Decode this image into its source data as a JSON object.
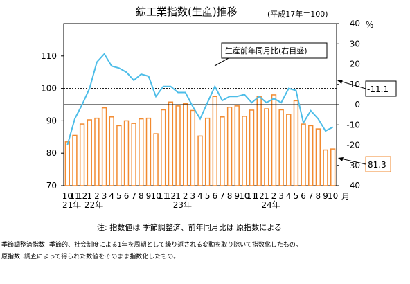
{
  "chart_data": {
    "type": "bar+line",
    "title": "鉱工業指数(生産)推移",
    "base_note": "(平成17年＝100)",
    "left_axis": {
      "ylim": [
        70,
        120
      ],
      "ticks": [
        70,
        80,
        90,
        100,
        110
      ]
    },
    "right_axis": {
      "unit": "%",
      "ylim": [
        -40,
        40
      ],
      "ticks": [
        40,
        30,
        20,
        10,
        0,
        -10,
        -20,
        -30,
        -40
      ]
    },
    "x_unit": "月",
    "month_labels": [
      "10",
      "11",
      "12",
      "1",
      "2",
      "3",
      "4",
      "5",
      "6",
      "7",
      "8",
      "9",
      "10",
      "11",
      "12",
      "1",
      "2",
      "3",
      "4",
      "5",
      "6",
      "7",
      "8",
      "9",
      "10",
      "11",
      "12",
      "1",
      "2",
      "3",
      "4",
      "5",
      "6",
      "7",
      "8",
      "9",
      "10"
    ],
    "year_labels": [
      {
        "label": "21年",
        "index": 0
      },
      {
        "label": "22年",
        "index": 3
      },
      {
        "label": "23年",
        "index": 15
      },
      {
        "label": "24年",
        "index": 27
      }
    ],
    "series": [
      {
        "name": "指数",
        "type": "bar",
        "axis": "left",
        "color": "#f28a2f",
        "values": [
          83.5,
          85.5,
          89,
          90.3,
          90.8,
          94,
          91.2,
          88.5,
          90,
          89.2,
          90.6,
          90.8,
          86,
          93.4,
          95.8,
          94.6,
          95.3,
          93.2,
          85.3,
          90.8,
          97.5,
          91.2,
          94.2,
          94.6,
          91.4,
          93.3,
          97.6,
          93.7,
          98,
          93.4,
          92,
          96.2,
          89,
          88.5,
          87.5,
          81,
          81.3
        ]
      },
      {
        "name": "生産前年同月比(右目盛)",
        "type": "line",
        "axis": "right",
        "color": "#4dbde8",
        "values": [
          -20,
          -7,
          0,
          8,
          21,
          25,
          19,
          18,
          16,
          12,
          15,
          14,
          4,
          9,
          9,
          6,
          6,
          -1,
          -7,
          1,
          9,
          2,
          4,
          4,
          5,
          1,
          4,
          1,
          3,
          1,
          8,
          7,
          -9,
          -3,
          -7,
          -13,
          -11.1
        ]
      }
    ],
    "annotations": {
      "line_last_value": "-11.1",
      "bar_last_value": "81.3"
    },
    "legend_label": "生産前年同月比(右目盛)",
    "reference_lines": {
      "zero_percent": "solid",
      "index_100": "dashed"
    }
  },
  "notes": {
    "main": "注: 指数値は 季節調整済、前年同月比は 原指数による",
    "line1": "季節調整済指数‥季節的、社会制度による1年を周期として繰り返される変動を取り除いて指数化したもの。",
    "line2": "原指数‥調査によって得られた数値をそのまま指数化したもの。"
  }
}
